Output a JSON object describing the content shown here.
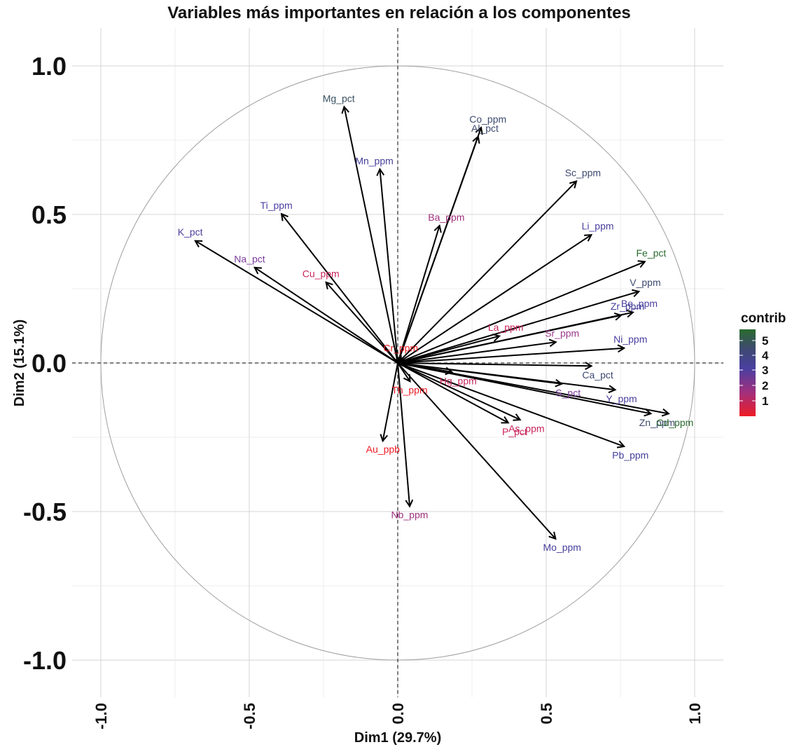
{
  "chart_data": {
    "type": "scatter",
    "subtype": "pca-variable-correlation-circle",
    "title": "Variables más importantes en relación a los componentes",
    "xlabel": "Dim1 (29.7%)",
    "ylabel": "Dim2 (15.1%)",
    "xlim": [
      -1.0,
      1.0
    ],
    "ylim": [
      -1.0,
      1.0
    ],
    "x_ticks": [
      -1.0,
      -0.5,
      0.0,
      0.5,
      1.0
    ],
    "y_ticks": [
      1.0,
      0.5,
      0.0,
      -0.5,
      -1.0
    ],
    "x_tick_labels": [
      "-1.0",
      "-0.5",
      "0.0",
      "0.5",
      "1.0"
    ],
    "y_tick_labels": [
      "1.0",
      "0.5",
      "0.0",
      "-0.5",
      "-1.0"
    ],
    "grid": true,
    "unit_circle": true,
    "reference_lines": [
      0,
      0
    ],
    "color_scale": {
      "title": "contrib",
      "ticks": [
        "5",
        "4",
        "3",
        "2",
        "1"
      ],
      "low_color": "#ee1c25",
      "mid_color": "#3f3fa0",
      "high_color": "#2a6b2e",
      "legend_position": "right"
    },
    "variables": [
      {
        "name": "Mg_pct",
        "x": -0.18,
        "y": 0.86,
        "color": "#37505f"
      },
      {
        "name": "Co_ppm",
        "x": 0.28,
        "y": 0.79,
        "color": "#3e4a70"
      },
      {
        "name": "Al_pct",
        "x": 0.27,
        "y": 0.76,
        "color": "#3e4a70"
      },
      {
        "name": "Mn_ppm",
        "x": -0.06,
        "y": 0.65,
        "color": "#45409a"
      },
      {
        "name": "Sc_ppm",
        "x": 0.6,
        "y": 0.61,
        "color": "#3e4a70"
      },
      {
        "name": "Ti_ppm",
        "x": -0.39,
        "y": 0.5,
        "color": "#4a3fa0"
      },
      {
        "name": "Ba_ppm",
        "x": 0.14,
        "y": 0.46,
        "color": "#a0307e"
      },
      {
        "name": "K_pct",
        "x": -0.68,
        "y": 0.41,
        "color": "#4a3fa0"
      },
      {
        "name": "Li_ppm",
        "x": 0.65,
        "y": 0.43,
        "color": "#4a3fa0"
      },
      {
        "name": "Fe_pct",
        "x": 0.83,
        "y": 0.34,
        "color": "#2a6b2e"
      },
      {
        "name": "Na_pct",
        "x": -0.48,
        "y": 0.32,
        "color": "#7a3a9a"
      },
      {
        "name": "Cu_ppm",
        "x": -0.24,
        "y": 0.27,
        "color": "#c8255a"
      },
      {
        "name": "V_ppm",
        "x": 0.81,
        "y": 0.24,
        "color": "#3e4a70"
      },
      {
        "name": "Be_ppm",
        "x": 0.79,
        "y": 0.17,
        "color": "#4a3fa0"
      },
      {
        "name": "Zr_ppm",
        "x": 0.75,
        "y": 0.16,
        "color": "#45409a"
      },
      {
        "name": "La_ppm",
        "x": 0.34,
        "y": 0.09,
        "color": "#c8255a"
      },
      {
        "name": "Sr_ppm",
        "x": 0.53,
        "y": 0.07,
        "color": "#9a3a8a"
      },
      {
        "name": "Ni_ppm",
        "x": 0.76,
        "y": 0.05,
        "color": "#4a3fa0"
      },
      {
        "name": "Cr_ppm",
        "x": 0.01,
        "y": 0.02,
        "color": "#ee1c25"
      },
      {
        "name": "Ca_pct",
        "x": 0.65,
        "y": -0.01,
        "color": "#3e4a70"
      },
      {
        "name": "Hg_ppm",
        "x": 0.18,
        "y": -0.03,
        "color": "#c8255a"
      },
      {
        "name": "Y_ppm",
        "x": 0.73,
        "y": -0.09,
        "color": "#4a3fa0"
      },
      {
        "name": "S_pct",
        "x": 0.55,
        "y": -0.07,
        "color": "#7a3a9a"
      },
      {
        "name": "Th_ppm",
        "x": 0.04,
        "y": -0.06,
        "color": "#ee1c25"
      },
      {
        "name": "Zn_ppm",
        "x": 0.85,
        "y": -0.17,
        "color": "#3e4a70"
      },
      {
        "name": "Cd_ppm",
        "x": 0.91,
        "y": -0.17,
        "color": "#2a6b2e"
      },
      {
        "name": "As_ppm",
        "x": 0.41,
        "y": -0.19,
        "color": "#c8255a"
      },
      {
        "name": "P_pct",
        "x": 0.37,
        "y": -0.2,
        "color": "#c8255a"
      },
      {
        "name": "Pb_ppm",
        "x": 0.76,
        "y": -0.28,
        "color": "#45409a"
      },
      {
        "name": "Au_ppb",
        "x": -0.05,
        "y": -0.26,
        "color": "#ee1c25"
      },
      {
        "name": "Nb_ppm",
        "x": 0.04,
        "y": -0.48,
        "color": "#a0307e"
      },
      {
        "name": "Mo_ppm",
        "x": 0.53,
        "y": -0.59,
        "color": "#45409a"
      }
    ],
    "label_positions_note": "labels drawn near arrow tips"
  }
}
